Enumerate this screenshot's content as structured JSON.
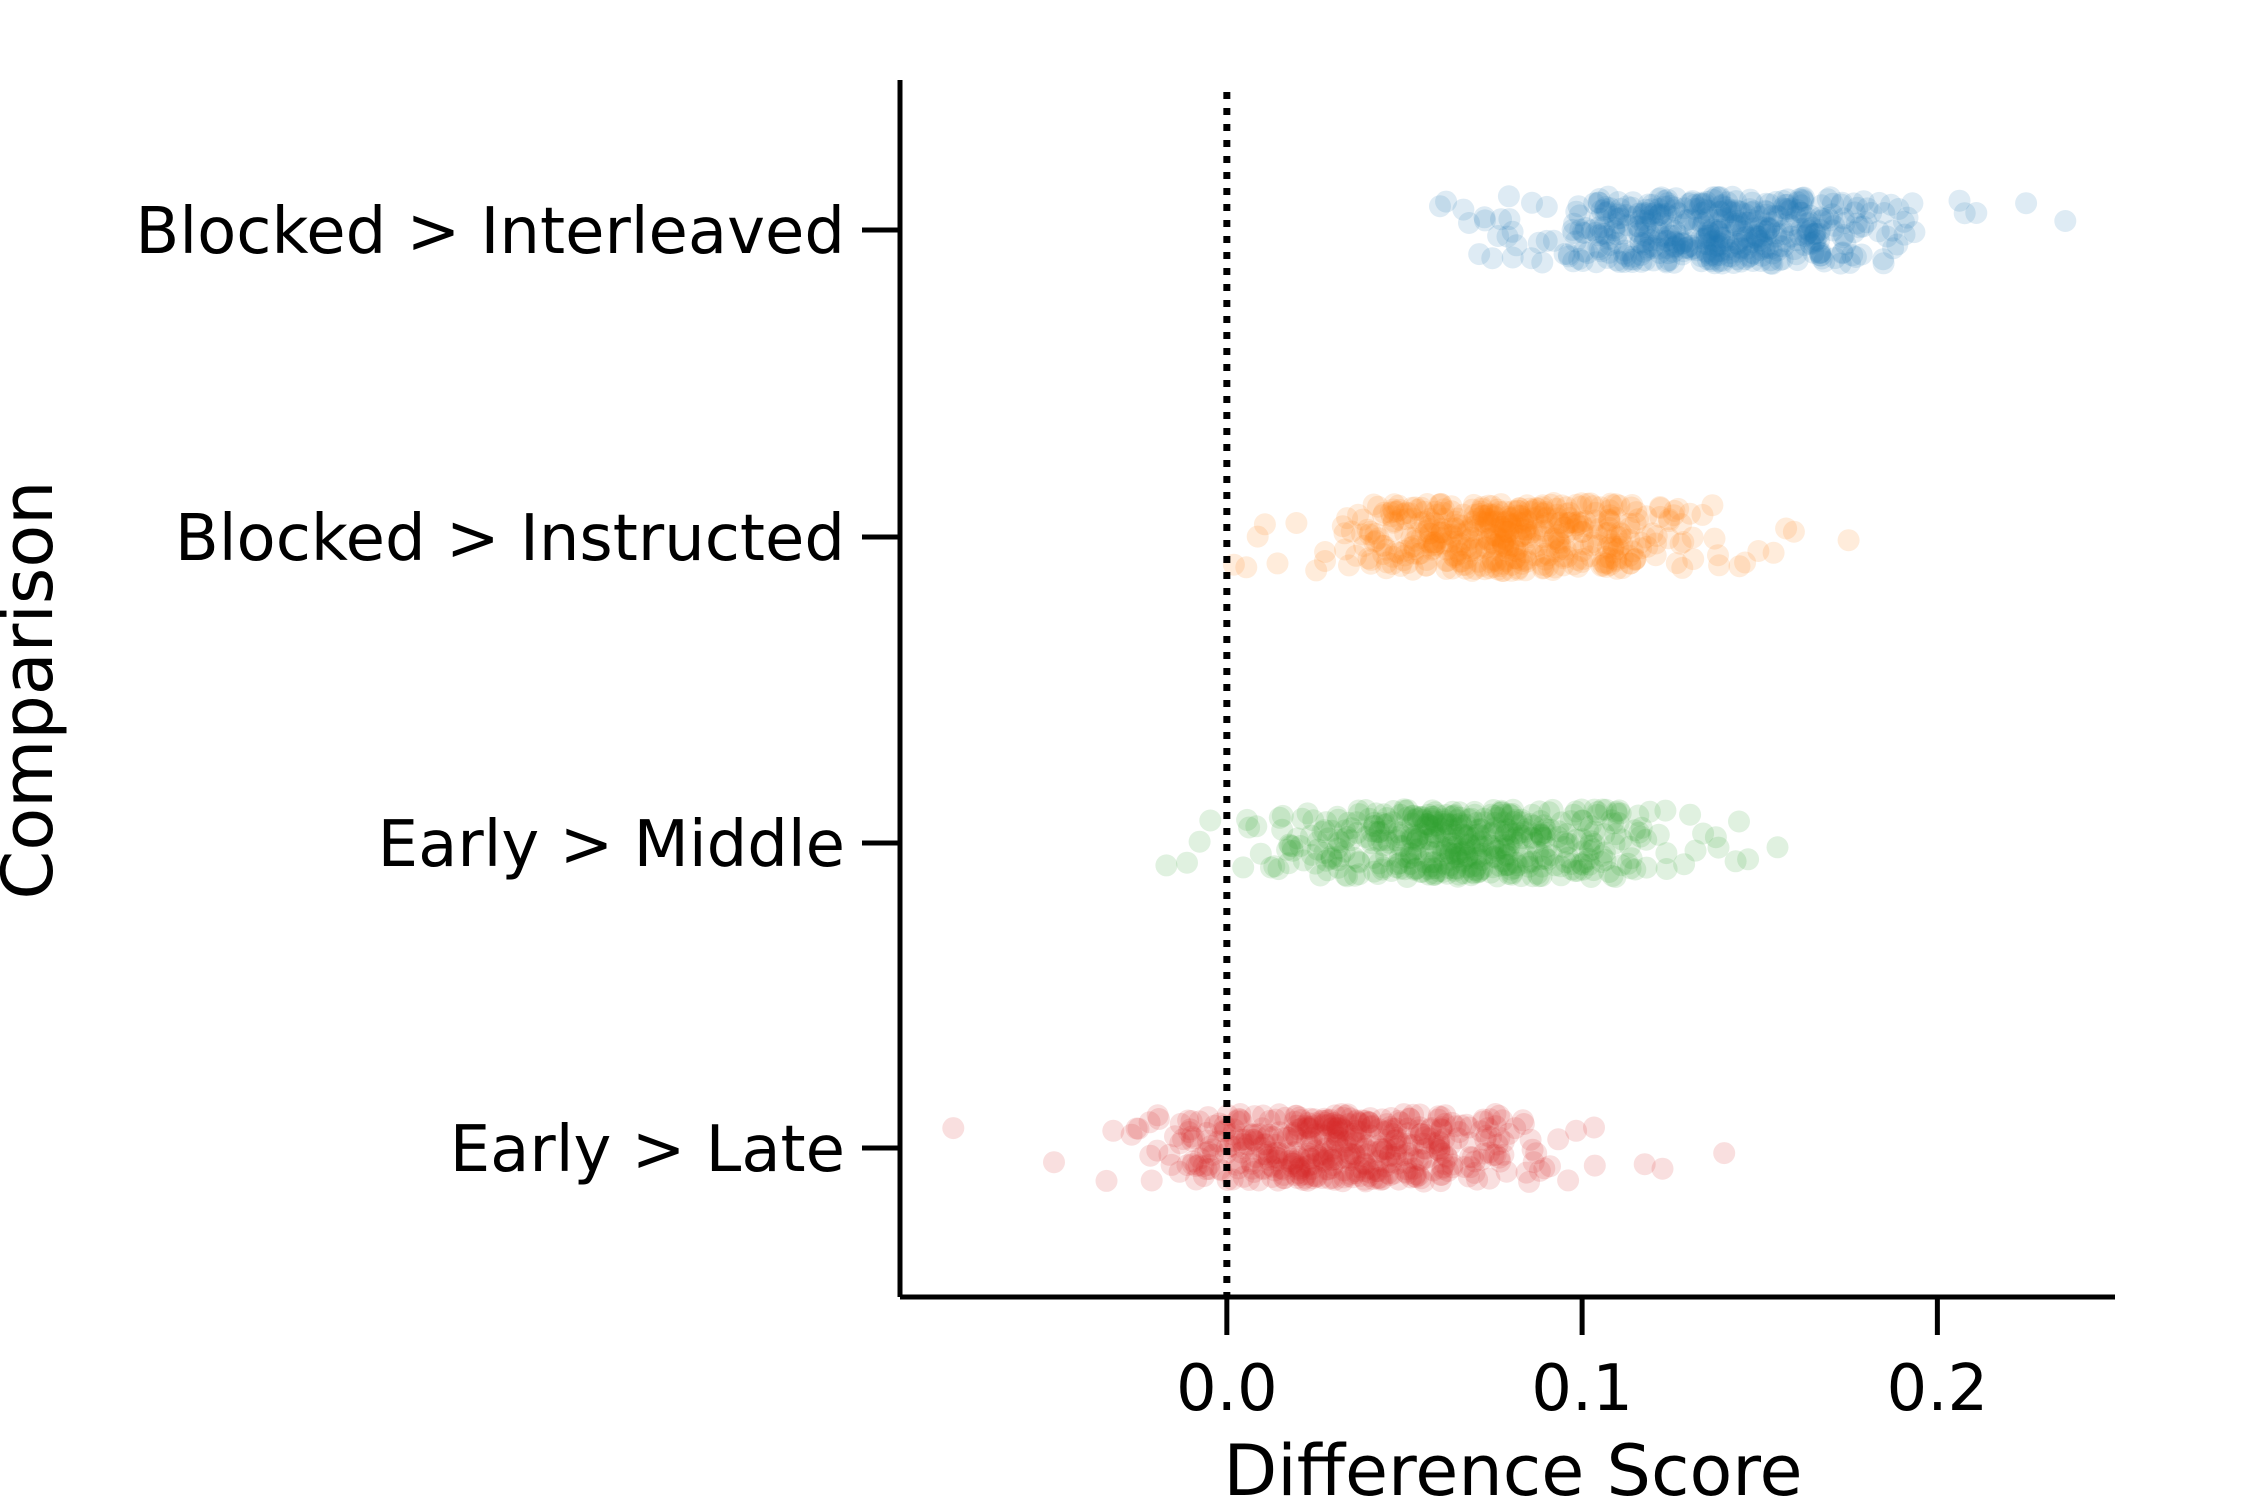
{
  "chart_data": {
    "type": "scatter",
    "title": "",
    "xlabel": "Difference Score",
    "ylabel": "Comparison",
    "xlim": [
      -0.092,
      0.25
    ],
    "x_ticks": [
      "0.0",
      "0.1",
      "0.2"
    ],
    "reference_line": {
      "x": 0.0,
      "style": "dotted",
      "color": "#000000"
    },
    "grid": false,
    "legend": "none",
    "point_alpha": 0.15,
    "categories": [
      "Blocked > Interleaved",
      "Blocked > Instructed",
      "Early > Middle",
      "Early > Late"
    ],
    "series": [
      {
        "category": "Blocked > Interleaved",
        "color": "#1f77b4",
        "mean": 0.138,
        "sd": 0.027,
        "min": 0.06,
        "max": 0.236,
        "n": 500
      },
      {
        "category": "Blocked > Instructed",
        "color": "#ff7f0e",
        "mean": 0.081,
        "sd": 0.026,
        "min": 0.002,
        "max": 0.175,
        "n": 500
      },
      {
        "category": "Early > Middle",
        "color": "#2ca02c",
        "mean": 0.068,
        "sd": 0.027,
        "min": -0.017,
        "max": 0.155,
        "n": 500
      },
      {
        "category": "Early > Late",
        "color": "#d62728",
        "mean": 0.033,
        "sd": 0.027,
        "min": -0.077,
        "max": 0.14,
        "n": 500
      }
    ]
  }
}
